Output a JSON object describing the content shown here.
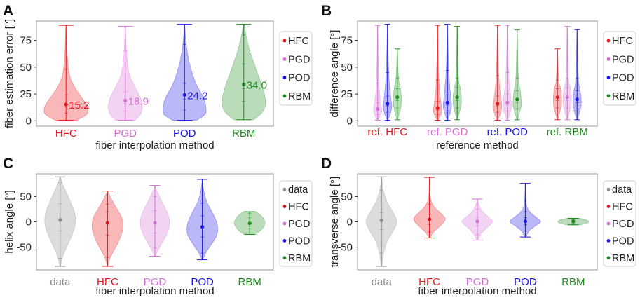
{
  "colors": {
    "HFC": "#e8141b",
    "PGD": "#d36fd3",
    "POD": "#1a15e6",
    "RBM": "#1e8a1e",
    "data": "#8a8a8a",
    "frame": "#9a9a9a",
    "legend_border": "#cfcfcf"
  },
  "chart_data": [
    {
      "id": "A",
      "panel_label": "A",
      "type": "violin",
      "xlabel": "fiber interpolation method",
      "ylabel": "fiber estimation error [°]",
      "ylim": [
        -5,
        93
      ],
      "yticks": [
        0,
        25,
        50,
        75
      ],
      "grid": false,
      "legend": [
        "HFC",
        "PGD",
        "POD",
        "RBM"
      ],
      "legend_position": "right",
      "categories": [
        "HFC",
        "PGD",
        "POD",
        "RBM"
      ],
      "annotations": [
        "15.2",
        "18.9",
        "24.2",
        "34.0"
      ],
      "series": [
        {
          "name": "HFC",
          "min": 0.5,
          "max": 89,
          "mean": 15.2,
          "q1": 7,
          "median": 13,
          "q3": 24,
          "upper": 48,
          "shape": [
            [
              0.5,
              0.5
            ],
            [
              6,
              0.95
            ],
            [
              12,
              1.0
            ],
            [
              18,
              0.85
            ],
            [
              25,
              0.6
            ],
            [
              35,
              0.3
            ],
            [
              45,
              0.14
            ],
            [
              60,
              0.06
            ],
            [
              75,
              0.03
            ],
            [
              89,
              0.01
            ]
          ]
        },
        {
          "name": "PGD",
          "min": 0.5,
          "max": 88,
          "mean": 18.9,
          "q1": 9,
          "median": 16,
          "q3": 27,
          "upper": 65,
          "shape": [
            [
              0.5,
              0.45
            ],
            [
              6,
              0.7
            ],
            [
              12,
              0.78
            ],
            [
              18,
              0.75
            ],
            [
              25,
              0.62
            ],
            [
              35,
              0.36
            ],
            [
              45,
              0.17
            ],
            [
              60,
              0.07
            ],
            [
              75,
              0.03
            ],
            [
              88,
              0.01
            ]
          ]
        },
        {
          "name": "POD",
          "min": 0.5,
          "max": 90,
          "mean": 24.2,
          "q1": 10,
          "median": 20,
          "q3": 35,
          "upper": 71,
          "shape": [
            [
              0.5,
              0.55
            ],
            [
              6,
              0.95
            ],
            [
              13,
              0.98
            ],
            [
              20,
              0.9
            ],
            [
              28,
              0.7
            ],
            [
              36,
              0.5
            ],
            [
              48,
              0.3
            ],
            [
              60,
              0.16
            ],
            [
              75,
              0.06
            ],
            [
              90,
              0.01
            ]
          ]
        },
        {
          "name": "RBM",
          "min": 1,
          "max": 90,
          "mean": 34.0,
          "q1": 18,
          "median": 30,
          "q3": 53,
          "upper": 80,
          "shape": [
            [
              1,
              0.45
            ],
            [
              8,
              0.85
            ],
            [
              16,
              1.0
            ],
            [
              25,
              0.95
            ],
            [
              35,
              0.8
            ],
            [
              45,
              0.62
            ],
            [
              55,
              0.45
            ],
            [
              65,
              0.28
            ],
            [
              78,
              0.12
            ],
            [
              90,
              0.02
            ]
          ]
        }
      ]
    },
    {
      "id": "B",
      "panel_label": "B",
      "type": "violin",
      "xlabel": "reference method",
      "ylabel": "difference angle [°]",
      "ylim": [
        -5,
        93
      ],
      "yticks": [
        0,
        25,
        50,
        75
      ],
      "grid": false,
      "legend": [
        "HFC",
        "PGD",
        "POD",
        "RBM"
      ],
      "legend_position": "right",
      "categories": [
        "ref. HFC",
        "ref. PGD",
        "ref. POD",
        "ref. RBM"
      ],
      "groups": [
        {
          "ref": "HFC",
          "series": [
            {
              "name": "PGD",
              "min": 0.5,
              "max": 89,
              "mean": 11,
              "q1": 6,
              "median": 10,
              "q3": 17,
              "upper": 35
            },
            {
              "name": "POD",
              "min": 0.5,
              "max": 90,
              "mean": 16,
              "q1": 8,
              "median": 14,
              "q3": 23,
              "upper": 45
            },
            {
              "name": "RBM",
              "min": 1,
              "max": 67,
              "mean": 22,
              "q1": 12,
              "median": 19,
              "q3": 30,
              "upper": 40
            }
          ]
        },
        {
          "ref": "PGD",
          "series": [
            {
              "name": "HFC",
              "min": 0.5,
              "max": 89,
              "mean": 12,
              "q1": 6,
              "median": 10,
              "q3": 18,
              "upper": 38
            },
            {
              "name": "POD",
              "min": 0.5,
              "max": 90,
              "mean": 17,
              "q1": 9,
              "median": 15,
              "q3": 24,
              "upper": 47
            },
            {
              "name": "RBM",
              "min": 1,
              "max": 88,
              "mean": 22,
              "q1": 12,
              "median": 19,
              "q3": 31,
              "upper": 40
            }
          ]
        },
        {
          "ref": "POD",
          "series": [
            {
              "name": "HFC",
              "min": 0.5,
              "max": 89,
              "mean": 16,
              "q1": 8,
              "median": 14,
              "q3": 23,
              "upper": 42
            },
            {
              "name": "PGD",
              "min": 0.5,
              "max": 89,
              "mean": 17,
              "q1": 9,
              "median": 15,
              "q3": 25,
              "upper": 45
            },
            {
              "name": "RBM",
              "min": 1,
              "max": 85,
              "mean": 20,
              "q1": 11,
              "median": 17,
              "q3": 28,
              "upper": 40
            }
          ]
        },
        {
          "ref": "RBM",
          "series": [
            {
              "name": "HFC",
              "min": 1,
              "max": 67,
              "mean": 22,
              "q1": 12,
              "median": 19,
              "q3": 30,
              "upper": 38
            },
            {
              "name": "PGD",
              "min": 1,
              "max": 88,
              "mean": 22,
              "q1": 12,
              "median": 19,
              "q3": 31,
              "upper": 40
            },
            {
              "name": "POD",
              "min": 1,
              "max": 85,
              "mean": 20,
              "q1": 11,
              "median": 17,
              "q3": 28,
              "upper": 40
            }
          ]
        }
      ]
    },
    {
      "id": "C",
      "panel_label": "C",
      "type": "violin",
      "xlabel": "fiber interpolation method",
      "ylabel": "helix angle [°]",
      "ylim": [
        -95,
        95
      ],
      "yticks": [
        -50,
        0,
        50
      ],
      "grid": false,
      "legend": [
        "data",
        "HFC",
        "PGD",
        "POD",
        "RBM"
      ],
      "legend_position": "right",
      "categories": [
        "data",
        "HFC",
        "PGD",
        "POD",
        "RBM"
      ],
      "series": [
        {
          "name": "data",
          "min": -88,
          "max": 89,
          "mean": 4,
          "q1": -18,
          "median": 2,
          "q3": 36,
          "lower": -72,
          "upper": 78,
          "shape": [
            [
              -88,
              0.02
            ],
            [
              -70,
              0.15
            ],
            [
              -50,
              0.42
            ],
            [
              -30,
              0.72
            ],
            [
              -10,
              0.95
            ],
            [
              5,
              1.0
            ],
            [
              20,
              0.92
            ],
            [
              40,
              0.66
            ],
            [
              60,
              0.38
            ],
            [
              75,
              0.15
            ],
            [
              89,
              0.02
            ]
          ]
        },
        {
          "name": "HFC",
          "min": -88,
          "max": 61,
          "mean": -2,
          "q1": -26,
          "median": -4,
          "q3": 20,
          "lower": -70,
          "upper": 35,
          "shape": [
            [
              -88,
              0.02
            ],
            [
              -75,
              0.12
            ],
            [
              -60,
              0.35
            ],
            [
              -40,
              0.7
            ],
            [
              -20,
              0.95
            ],
            [
              -5,
              1.0
            ],
            [
              10,
              0.9
            ],
            [
              25,
              0.62
            ],
            [
              40,
              0.34
            ],
            [
              52,
              0.14
            ],
            [
              61,
              0.02
            ]
          ]
        },
        {
          "name": "PGD",
          "min": -68,
          "max": 72,
          "mean": -2,
          "q1": -22,
          "median": -3,
          "q3": 22,
          "lower": -52,
          "upper": 50,
          "shape": [
            [
              -68,
              0.03
            ],
            [
              -55,
              0.22
            ],
            [
              -40,
              0.5
            ],
            [
              -22,
              0.8
            ],
            [
              -5,
              0.95
            ],
            [
              10,
              0.9
            ],
            [
              25,
              0.7
            ],
            [
              40,
              0.45
            ],
            [
              55,
              0.22
            ],
            [
              65,
              0.08
            ],
            [
              72,
              0.02
            ]
          ]
        },
        {
          "name": "POD",
          "min": -75,
          "max": 84,
          "mean": -10,
          "q1": -30,
          "median": -11,
          "q3": 12,
          "lower": -62,
          "upper": 37,
          "shape": [
            [
              -75,
              0.03
            ],
            [
              -60,
              0.25
            ],
            [
              -45,
              0.58
            ],
            [
              -28,
              0.92
            ],
            [
              -12,
              1.0
            ],
            [
              5,
              0.86
            ],
            [
              20,
              0.62
            ],
            [
              35,
              0.36
            ],
            [
              50,
              0.18
            ],
            [
              68,
              0.06
            ],
            [
              84,
              0.01
            ]
          ]
        },
        {
          "name": "RBM",
          "min": -25,
          "max": 20,
          "mean": -3,
          "q1": -14,
          "median": -4,
          "q3": 8,
          "lower": -22,
          "upper": 17,
          "shape": [
            [
              -25,
              0.35
            ],
            [
              -18,
              0.68
            ],
            [
              -10,
              0.9
            ],
            [
              -3,
              1.0
            ],
            [
              5,
              0.92
            ],
            [
              12,
              0.75
            ],
            [
              17,
              0.55
            ],
            [
              20,
              0.42
            ]
          ]
        }
      ]
    },
    {
      "id": "D",
      "panel_label": "D",
      "type": "violin",
      "xlabel": "fiber interpolation method",
      "ylabel": "transverse angle [°]",
      "ylim": [
        -95,
        95
      ],
      "yticks": [
        -50,
        0,
        50
      ],
      "grid": false,
      "legend": [
        "data",
        "HFC",
        "PGD",
        "POD",
        "RBM"
      ],
      "legend_position": "right",
      "categories": [
        "data",
        "HFC",
        "PGD",
        "POD",
        "RBM"
      ],
      "series": [
        {
          "name": "data",
          "min": -88,
          "max": 89,
          "mean": 3,
          "q1": -15,
          "median": 2,
          "q3": 18,
          "lower": -62,
          "upper": 62,
          "shape": [
            [
              -88,
              0.02
            ],
            [
              -65,
              0.12
            ],
            [
              -40,
              0.35
            ],
            [
              -20,
              0.72
            ],
            [
              0,
              1.0
            ],
            [
              20,
              0.72
            ],
            [
              40,
              0.35
            ],
            [
              60,
              0.14
            ],
            [
              75,
              0.05
            ],
            [
              89,
              0.02
            ]
          ]
        },
        {
          "name": "HFC",
          "min": -32,
          "max": 88,
          "mean": 5,
          "q1": -5,
          "median": 4,
          "q3": 15,
          "lower": -20,
          "upper": 35,
          "shape": [
            [
              -32,
              0.04
            ],
            [
              -22,
              0.22
            ],
            [
              -10,
              0.62
            ],
            [
              0,
              0.95
            ],
            [
              8,
              1.0
            ],
            [
              18,
              0.7
            ],
            [
              30,
              0.3
            ],
            [
              45,
              0.08
            ],
            [
              65,
              0.02
            ],
            [
              88,
              0.01
            ]
          ]
        },
        {
          "name": "PGD",
          "min": -36,
          "max": 45,
          "mean": 1,
          "q1": -8,
          "median": 0,
          "q3": 9,
          "lower": -25,
          "upper": 25,
          "shape": [
            [
              -36,
              0.04
            ],
            [
              -25,
              0.22
            ],
            [
              -12,
              0.6
            ],
            [
              0,
              1.0
            ],
            [
              10,
              0.7
            ],
            [
              22,
              0.3
            ],
            [
              35,
              0.08
            ],
            [
              45,
              0.02
            ]
          ]
        },
        {
          "name": "POD",
          "min": -30,
          "max": 76,
          "mean": 1,
          "q1": -6,
          "median": 0,
          "q3": 8,
          "lower": -18,
          "upper": 20,
          "shape": [
            [
              -30,
              0.04
            ],
            [
              -18,
              0.25
            ],
            [
              -8,
              0.65
            ],
            [
              0,
              1.0
            ],
            [
              8,
              0.75
            ],
            [
              18,
              0.35
            ],
            [
              30,
              0.1
            ],
            [
              50,
              0.03
            ],
            [
              76,
              0.01
            ]
          ]
        },
        {
          "name": "RBM",
          "min": -6,
          "max": 7,
          "mean": 1,
          "q1": -2,
          "median": 1,
          "q3": 4,
          "lower": -5,
          "upper": 6,
          "shape": [
            [
              -6,
              0.45
            ],
            [
              -3,
              0.85
            ],
            [
              0,
              1.0
            ],
            [
              3,
              0.9
            ],
            [
              6,
              0.55
            ],
            [
              7,
              0.4
            ]
          ]
        }
      ]
    }
  ]
}
